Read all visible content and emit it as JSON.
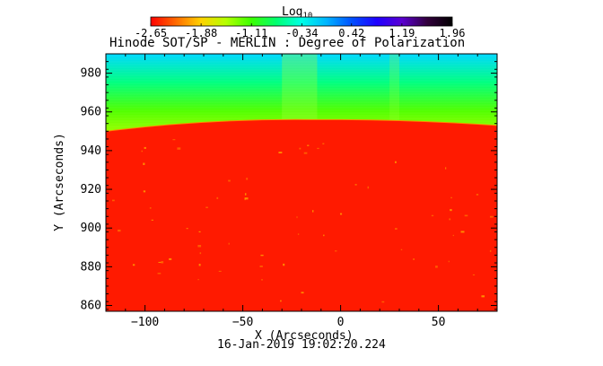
{
  "colorbar": {
    "label": "Log",
    "label_sub": "10",
    "ticks": [
      "-2.65",
      "-1.88",
      "-1.11",
      "-0.34",
      "0.42",
      "1.19",
      "1.96"
    ],
    "tick_values": [
      -2.65,
      -1.88,
      -1.11,
      -0.34,
      0.42,
      1.19,
      1.96
    ],
    "range": [
      -2.65,
      1.96
    ],
    "colors": [
      "#ff0000",
      "#ff6a00",
      "#ffd200",
      "#b4ff00",
      "#3cff00",
      "#00ff70",
      "#00ffe6",
      "#00b4ff",
      "#0050ff",
      "#1e00ff",
      "#5a00d2",
      "#32003c",
      "#000000"
    ]
  },
  "title": "Hinode SOT/SP - MERLIN : Degree of Polarization",
  "x_axis": {
    "label": "X (Arcseconds)",
    "range": [
      -120,
      80
    ],
    "ticks": [
      -100,
      -50,
      0,
      50
    ],
    "tick_labels": [
      "−100",
      "−50",
      "0",
      "50"
    ]
  },
  "y_axis": {
    "label": "Y (Arcseconds)",
    "range": [
      857,
      990
    ],
    "ticks": [
      860,
      880,
      900,
      920,
      940,
      960,
      980
    ],
    "tick_labels": [
      "860",
      "880",
      "900",
      "920",
      "940",
      "960",
      "980"
    ]
  },
  "timestamp": "16-Jan-2019 19:02:20.224",
  "image": {
    "limb_y_left": 950,
    "limb_y_peak": 956,
    "limb_y_right": 953,
    "limb_peak_x": -15,
    "disk_color": "#ff1a00",
    "offlimb_colors": [
      "#b4ff00",
      "#50ff00",
      "#00ff80",
      "#00d8ff"
    ]
  }
}
